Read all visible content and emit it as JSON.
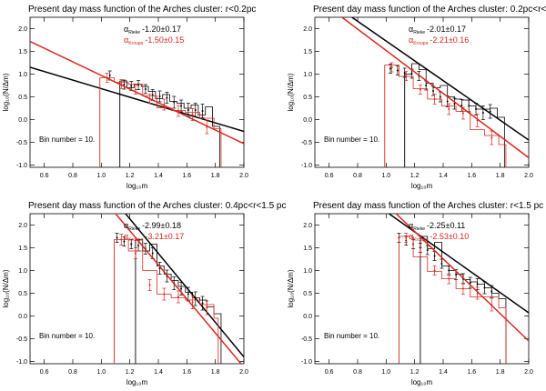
{
  "colors": {
    "rieke": "#000000",
    "kroupa": "#d8281e",
    "axis": "#000000"
  },
  "chart_data": [
    {
      "type": "line",
      "title": "Present day mass function of the Arches cluster: r<0.2pc",
      "xlabel": "log₁₀m",
      "ylabel": "log₁₀(N/Δm)",
      "xlim": [
        0.5,
        2.0
      ],
      "ylim": [
        -1.05,
        2.25
      ],
      "xticks": [
        0.6,
        0.8,
        1.0,
        1.2,
        1.4,
        1.6,
        1.8,
        2.0
      ],
      "yticks": [
        -1.0,
        -0.5,
        0.0,
        0.5,
        1.0,
        1.5,
        2.0
      ],
      "annotation": "Bin number = 10.",
      "alpha_rieke": "-1.20±0.17",
      "alpha_kroupa": "-1.50±0.15",
      "series": [
        {
          "name": "Rieke",
          "color": "#000000",
          "fit": [
            [
              0.5,
              1.15
            ],
            [
              2.0,
              -0.26
            ]
          ],
          "edge_x": 1.13,
          "hist_x": [
            1.13,
            1.18,
            1.23,
            1.28,
            1.33,
            1.38,
            1.43,
            1.48,
            1.53,
            1.58,
            1.63,
            1.68,
            1.73,
            1.78,
            1.83
          ],
          "hist_y": [
            0.85,
            0.7,
            0.78,
            0.73,
            0.62,
            0.46,
            0.55,
            0.4,
            0.36,
            0.25,
            0.32,
            0.1,
            0.28,
            -0.15
          ],
          "points_x": [
            1.06,
            1.16,
            1.21,
            1.26,
            1.31,
            1.36,
            1.41,
            1.46,
            1.51,
            1.56,
            1.61,
            1.66,
            1.71
          ],
          "points_y": [
            0.97,
            0.77,
            0.74,
            0.76,
            0.67,
            0.54,
            0.51,
            0.48,
            0.38,
            0.3,
            0.21,
            0.21,
            0.19
          ],
          "errors": [
            0.1,
            0.1,
            0.1,
            0.1,
            0.1,
            0.12,
            0.12,
            0.12,
            0.13,
            0.13,
            0.15,
            0.15,
            0.15
          ]
        },
        {
          "name": "Kroupa",
          "color": "#d8281e",
          "fit": [
            [
              0.5,
              1.72
            ],
            [
              2.0,
              -0.53
            ]
          ],
          "edge_x": 0.99,
          "hist_x": [
            0.99,
            1.09,
            1.19,
            1.29,
            1.39,
            1.49,
            1.59,
            1.69,
            1.79,
            1.84
          ],
          "hist_y": [
            0.92,
            0.82,
            0.78,
            0.52,
            0.26,
            0.2,
            0.16,
            0.03,
            -0.2
          ],
          "points_x": [
            1.04,
            1.14,
            1.24,
            1.34,
            1.44,
            1.54,
            1.64,
            1.74
          ],
          "points_y": [
            0.92,
            0.78,
            0.66,
            0.46,
            0.33,
            0.19,
            0.11,
            -0.16
          ],
          "errors": [
            0.1,
            0.1,
            0.1,
            0.1,
            0.12,
            0.12,
            0.13,
            0.15
          ]
        }
      ]
    },
    {
      "type": "line",
      "title": "Present day mass function of the Arches cluster: 0.2pc<r<0.4pc",
      "xlabel": "log₁₀m",
      "ylabel": "log₁₀(N/Δm)",
      "xlim": [
        0.5,
        2.0
      ],
      "ylim": [
        -1.05,
        2.25
      ],
      "xticks": [
        0.6,
        0.8,
        1.0,
        1.2,
        1.4,
        1.6,
        1.8,
        2.0
      ],
      "yticks": [
        -1.0,
        -0.5,
        0.0,
        0.5,
        1.0,
        1.5,
        2.0
      ],
      "annotation": "Bin number = 10.",
      "alpha_rieke": "-2.01±0.17",
      "alpha_kroupa": "-2.21±0.16",
      "series": [
        {
          "name": "Rieke",
          "color": "#000000",
          "fit": [
            [
              0.76,
              2.25
            ],
            [
              2.0,
              -0.45
            ]
          ],
          "edge_x": 1.13,
          "hist_x": [
            1.13,
            1.18,
            1.23,
            1.28,
            1.33,
            1.38,
            1.43,
            1.48,
            1.53,
            1.58,
            1.63,
            1.68,
            1.73,
            1.78,
            1.83
          ],
          "hist_y": [
            1.0,
            1.23,
            1.1,
            0.8,
            0.7,
            0.75,
            0.5,
            0.45,
            0.43,
            0.3,
            0.23,
            0.23,
            0.25,
            0.05
          ],
          "points_x": [
            1.03,
            1.08,
            1.13,
            1.18,
            1.23,
            1.28,
            1.33,
            1.38,
            1.43,
            1.48,
            1.53,
            1.58,
            1.63,
            1.68,
            1.73
          ],
          "points_y": [
            1.12,
            1.08,
            1.03,
            1.01,
            0.96,
            0.75,
            0.63,
            0.5,
            0.4,
            0.35,
            0.31,
            0.3,
            0.23,
            0.15,
            0.18
          ],
          "errors": [
            0.1,
            0.1,
            0.1,
            0.1,
            0.1,
            0.1,
            0.1,
            0.11,
            0.12,
            0.12,
            0.13,
            0.13,
            0.13,
            0.15,
            0.15
          ]
        },
        {
          "name": "Kroupa",
          "color": "#d8281e",
          "fit": [
            [
              0.69,
              2.25
            ],
            [
              2.0,
              -0.84
            ]
          ],
          "edge_x": 0.99,
          "hist_x": [
            0.99,
            1.09,
            1.19,
            1.29,
            1.39,
            1.49,
            1.59,
            1.69,
            1.79,
            1.84
          ],
          "hist_y": [
            1.2,
            0.95,
            0.68,
            0.45,
            0.3,
            0.18,
            -0.22,
            -0.35,
            -0.55
          ],
          "points_x": [
            1.04,
            1.14,
            1.24,
            1.34,
            1.44,
            1.54,
            1.64,
            1.74
          ],
          "points_y": [
            1.15,
            0.96,
            0.66,
            0.45,
            0.23,
            0.14,
            -0.02,
            -0.4
          ],
          "errors": [
            0.1,
            0.1,
            0.1,
            0.11,
            0.12,
            0.13,
            0.14,
            0.15
          ]
        }
      ]
    },
    {
      "type": "line",
      "title": "Present day mass function of the Arches cluster: 0.4pc<r<1.5 pc",
      "xlabel": "log₁₀m",
      "ylabel": "log₁₀(N/Δm)",
      "xlim": [
        0.5,
        2.0
      ],
      "ylim": [
        -1.05,
        2.25
      ],
      "xticks": [
        0.6,
        0.8,
        1.0,
        1.2,
        1.4,
        1.6,
        1.8,
        2.0
      ],
      "yticks": [
        -1.0,
        -0.5,
        0.0,
        0.5,
        1.0,
        1.5,
        2.0
      ],
      "annotation": "Bin number = 10.",
      "alpha_rieke": "-2.99±0.18",
      "alpha_kroupa": "-3.21±0.17",
      "series": [
        {
          "name": "Rieke",
          "color": "#000000",
          "fit": [
            [
              1.17,
              2.25
            ],
            [
              2.0,
              -0.9
            ]
          ],
          "edge_x": 1.24,
          "hist_x": [
            1.24,
            1.29,
            1.34,
            1.39,
            1.44,
            1.49,
            1.54,
            1.59,
            1.64,
            1.69,
            1.74,
            1.79,
            1.84
          ],
          "hist_y": [
            1.68,
            1.43,
            1.58,
            1.1,
            0.92,
            0.78,
            0.65,
            0.52,
            0.4,
            0.35,
            0.2,
            0.05
          ],
          "points_x": [
            1.11,
            1.16,
            1.21,
            1.26,
            1.31,
            1.36,
            1.41,
            1.46,
            1.51,
            1.56,
            1.61,
            1.66,
            1.71
          ],
          "points_y": [
            1.72,
            1.64,
            1.58,
            1.55,
            1.48,
            1.38,
            1.05,
            0.88,
            0.72,
            0.6,
            0.48,
            0.38,
            0.28
          ],
          "errors": [
            0.1,
            0.1,
            0.1,
            0.12,
            0.12,
            0.12,
            0.13,
            0.13,
            0.14,
            0.14,
            0.15,
            0.15,
            0.15
          ]
        },
        {
          "name": "Kroupa",
          "color": "#d8281e",
          "fit": [
            [
              1.1,
              2.25
            ],
            [
              1.98,
              -1.05
            ]
          ],
          "edge_x": 1.09,
          "hist_x": [
            1.09,
            1.19,
            1.29,
            1.39,
            1.49,
            1.59,
            1.69,
            1.79,
            1.82
          ],
          "hist_y": [
            1.68,
            1.43,
            1.0,
            0.48,
            0.4,
            0.35,
            0.25,
            -0.05
          ],
          "points_x": [
            1.14,
            1.24,
            1.34,
            1.44,
            1.54,
            1.64,
            1.74
          ],
          "points_y": [
            1.68,
            1.38,
            0.68,
            0.48,
            0.42,
            0.3,
            0.18
          ],
          "errors": [
            0.12,
            0.12,
            0.12,
            0.13,
            0.13,
            0.14,
            0.15
          ]
        }
      ]
    },
    {
      "type": "line",
      "title": "Present day mass function of the Arches cluster: r<1.5 pc",
      "xlabel": "log₁₀m",
      "ylabel": "log₁₀(N/Δm)",
      "xlim": [
        0.5,
        2.0
      ],
      "ylim": [
        -1.05,
        2.25
      ],
      "xticks": [
        0.6,
        0.8,
        1.0,
        1.2,
        1.4,
        1.6,
        1.8,
        2.0
      ],
      "yticks": [
        -1.0,
        -0.5,
        0.0,
        0.5,
        1.0,
        1.5,
        2.0
      ],
      "annotation": "Bin number = 10.",
      "alpha_rieke": "-2.25±0.11",
      "alpha_kroupa": "-2.53±0.10",
      "series": [
        {
          "name": "Rieke",
          "color": "#000000",
          "fit": [
            [
              1.02,
              2.25
            ],
            [
              2.0,
              0.07
            ]
          ],
          "edge_x": 1.24,
          "hist_x": [
            1.24,
            1.29,
            1.34,
            1.39,
            1.44,
            1.49,
            1.54,
            1.59,
            1.64,
            1.69,
            1.74,
            1.79,
            1.84
          ],
          "hist_y": [
            1.75,
            1.48,
            1.62,
            1.1,
            1.0,
            0.92,
            0.8,
            0.75,
            0.7,
            0.62,
            0.5,
            0.38
          ],
          "points_x": [
            1.09,
            1.14,
            1.19,
            1.24,
            1.29,
            1.34,
            1.39,
            1.44,
            1.49,
            1.54,
            1.59,
            1.64,
            1.69,
            1.74
          ],
          "points_y": [
            1.72,
            1.66,
            1.58,
            1.5,
            1.45,
            1.32,
            1.15,
            1.0,
            0.91,
            0.82,
            0.73,
            0.7,
            0.62,
            0.54
          ],
          "errors": [
            0.1,
            0.1,
            0.1,
            0.1,
            0.1,
            0.1,
            0.1,
            0.1,
            0.11,
            0.11,
            0.12,
            0.12,
            0.13,
            0.13
          ]
        },
        {
          "name": "Kroupa",
          "color": "#d8281e",
          "fit": [
            [
              1.07,
              2.25
            ],
            [
              2.0,
              -0.55
            ]
          ],
          "edge_x": 1.09,
          "hist_x": [
            1.09,
            1.19,
            1.29,
            1.39,
            1.49,
            1.59,
            1.69,
            1.79,
            1.84
          ],
          "hist_y": [
            1.75,
            1.3,
            0.98,
            0.82,
            0.6,
            0.42,
            0.42,
            0.18
          ],
          "points_x": [
            1.14,
            1.24,
            1.34,
            1.44,
            1.54,
            1.64,
            1.74
          ],
          "points_y": [
            1.72,
            1.4,
            1.0,
            0.82,
            0.6,
            0.5,
            0.25
          ],
          "errors": [
            0.1,
            0.1,
            0.1,
            0.11,
            0.12,
            0.13,
            0.14
          ]
        }
      ]
    }
  ]
}
